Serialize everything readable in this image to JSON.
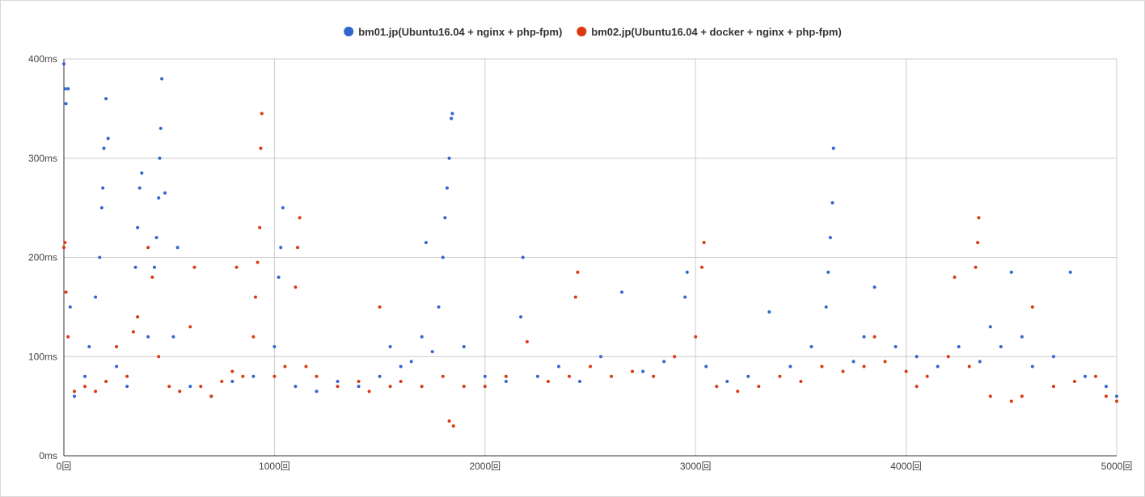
{
  "chart_data": {
    "type": "scatter",
    "title": "",
    "xlabel": "",
    "ylabel": "",
    "x_range": [
      0,
      5000
    ],
    "y_range": [
      0,
      400
    ],
    "x_ticks": [
      {
        "value": 0,
        "label": "0回"
      },
      {
        "value": 1000,
        "label": "1000回"
      },
      {
        "value": 2000,
        "label": "2000回"
      },
      {
        "value": 3000,
        "label": "3000回"
      },
      {
        "value": 4000,
        "label": "4000回"
      },
      {
        "value": 5000,
        "label": "5000回"
      }
    ],
    "y_ticks": [
      {
        "value": 0,
        "label": "0ms"
      },
      {
        "value": 100,
        "label": "100ms"
      },
      {
        "value": 200,
        "label": "200ms"
      },
      {
        "value": 300,
        "label": "300ms"
      },
      {
        "value": 400,
        "label": "400ms"
      }
    ],
    "grid": true,
    "legend_position": "top-center",
    "series": [
      {
        "name": "bm01.jp(Ubuntu16.04 + nginx + php-fpm)",
        "color": "#3366cc",
        "points": [
          [
            0,
            395
          ],
          [
            5,
            370
          ],
          [
            10,
            355
          ],
          [
            20,
            370
          ],
          [
            30,
            150
          ],
          [
            50,
            60
          ],
          [
            100,
            80
          ],
          [
            120,
            110
          ],
          [
            150,
            160
          ],
          [
            170,
            200
          ],
          [
            180,
            250
          ],
          [
            185,
            270
          ],
          [
            190,
            310
          ],
          [
            200,
            360
          ],
          [
            210,
            320
          ],
          [
            250,
            90
          ],
          [
            300,
            70
          ],
          [
            340,
            190
          ],
          [
            350,
            230
          ],
          [
            360,
            270
          ],
          [
            370,
            285
          ],
          [
            400,
            120
          ],
          [
            430,
            190
          ],
          [
            440,
            220
          ],
          [
            450,
            260
          ],
          [
            455,
            300
          ],
          [
            460,
            330
          ],
          [
            465,
            380
          ],
          [
            480,
            265
          ],
          [
            520,
            120
          ],
          [
            540,
            210
          ],
          [
            600,
            70
          ],
          [
            700,
            60
          ],
          [
            800,
            75
          ],
          [
            900,
            80
          ],
          [
            1000,
            110
          ],
          [
            1020,
            180
          ],
          [
            1030,
            210
          ],
          [
            1040,
            250
          ],
          [
            1100,
            70
          ],
          [
            1200,
            65
          ],
          [
            1300,
            75
          ],
          [
            1400,
            70
          ],
          [
            1500,
            80
          ],
          [
            1550,
            110
          ],
          [
            1600,
            90
          ],
          [
            1650,
            95
          ],
          [
            1700,
            120
          ],
          [
            1720,
            215
          ],
          [
            1750,
            105
          ],
          [
            1780,
            150
          ],
          [
            1800,
            200
          ],
          [
            1810,
            240
          ],
          [
            1820,
            270
          ],
          [
            1830,
            300
          ],
          [
            1840,
            340
          ],
          [
            1845,
            345
          ],
          [
            1900,
            110
          ],
          [
            2000,
            80
          ],
          [
            2100,
            75
          ],
          [
            2170,
            140
          ],
          [
            2180,
            200
          ],
          [
            2250,
            80
          ],
          [
            2350,
            90
          ],
          [
            2450,
            75
          ],
          [
            2550,
            100
          ],
          [
            2650,
            165
          ],
          [
            2750,
            85
          ],
          [
            2850,
            95
          ],
          [
            2950,
            160
          ],
          [
            2960,
            185
          ],
          [
            3050,
            90
          ],
          [
            3150,
            75
          ],
          [
            3250,
            80
          ],
          [
            3350,
            145
          ],
          [
            3450,
            90
          ],
          [
            3550,
            110
          ],
          [
            3620,
            150
          ],
          [
            3630,
            185
          ],
          [
            3640,
            220
          ],
          [
            3650,
            255
          ],
          [
            3655,
            310
          ],
          [
            3750,
            95
          ],
          [
            3800,
            120
          ],
          [
            3850,
            170
          ],
          [
            3950,
            110
          ],
          [
            4050,
            100
          ],
          [
            4150,
            90
          ],
          [
            4250,
            110
          ],
          [
            4350,
            95
          ],
          [
            4400,
            130
          ],
          [
            4450,
            110
          ],
          [
            4500,
            185
          ],
          [
            4550,
            120
          ],
          [
            4600,
            90
          ],
          [
            4700,
            100
          ],
          [
            4780,
            185
          ],
          [
            4850,
            80
          ],
          [
            4950,
            70
          ],
          [
            5000,
            60
          ]
        ]
      },
      {
        "name": "bm02.jp(Ubuntu16.04 + docker + nginx + php-fpm)",
        "color": "#dc3912",
        "points": [
          [
            0,
            210
          ],
          [
            5,
            215
          ],
          [
            10,
            165
          ],
          [
            20,
            120
          ],
          [
            50,
            65
          ],
          [
            100,
            70
          ],
          [
            150,
            65
          ],
          [
            200,
            75
          ],
          [
            250,
            110
          ],
          [
            300,
            80
          ],
          [
            330,
            125
          ],
          [
            350,
            140
          ],
          [
            400,
            210
          ],
          [
            420,
            180
          ],
          [
            450,
            100
          ],
          [
            500,
            70
          ],
          [
            550,
            65
          ],
          [
            600,
            130
          ],
          [
            620,
            190
          ],
          [
            650,
            70
          ],
          [
            700,
            60
          ],
          [
            750,
            75
          ],
          [
            800,
            85
          ],
          [
            820,
            190
          ],
          [
            850,
            80
          ],
          [
            900,
            120
          ],
          [
            910,
            160
          ],
          [
            920,
            195
          ],
          [
            930,
            230
          ],
          [
            935,
            310
          ],
          [
            940,
            345
          ],
          [
            1000,
            80
          ],
          [
            1050,
            90
          ],
          [
            1100,
            170
          ],
          [
            1110,
            210
          ],
          [
            1120,
            240
          ],
          [
            1150,
            90
          ],
          [
            1200,
            80
          ],
          [
            1300,
            70
          ],
          [
            1400,
            75
          ],
          [
            1450,
            65
          ],
          [
            1500,
            150
          ],
          [
            1550,
            70
          ],
          [
            1600,
            75
          ],
          [
            1700,
            70
          ],
          [
            1800,
            80
          ],
          [
            1830,
            35
          ],
          [
            1850,
            30
          ],
          [
            1900,
            70
          ],
          [
            2000,
            70
          ],
          [
            2100,
            80
          ],
          [
            2200,
            115
          ],
          [
            2300,
            75
          ],
          [
            2400,
            80
          ],
          [
            2430,
            160
          ],
          [
            2440,
            185
          ],
          [
            2500,
            90
          ],
          [
            2600,
            80
          ],
          [
            2700,
            85
          ],
          [
            2800,
            80
          ],
          [
            2900,
            100
          ],
          [
            3000,
            120
          ],
          [
            3030,
            190
          ],
          [
            3040,
            215
          ],
          [
            3100,
            70
          ],
          [
            3200,
            65
          ],
          [
            3300,
            70
          ],
          [
            3400,
            80
          ],
          [
            3500,
            75
          ],
          [
            3600,
            90
          ],
          [
            3700,
            85
          ],
          [
            3800,
            90
          ],
          [
            3850,
            120
          ],
          [
            3900,
            95
          ],
          [
            4000,
            85
          ],
          [
            4050,
            70
          ],
          [
            4100,
            80
          ],
          [
            4200,
            100
          ],
          [
            4230,
            180
          ],
          [
            4300,
            90
          ],
          [
            4330,
            190
          ],
          [
            4340,
            215
          ],
          [
            4345,
            240
          ],
          [
            4400,
            60
          ],
          [
            4500,
            55
          ],
          [
            4550,
            60
          ],
          [
            4600,
            150
          ],
          [
            4700,
            70
          ],
          [
            4800,
            75
          ],
          [
            4900,
            80
          ],
          [
            4950,
            60
          ],
          [
            5000,
            55
          ]
        ]
      }
    ]
  }
}
